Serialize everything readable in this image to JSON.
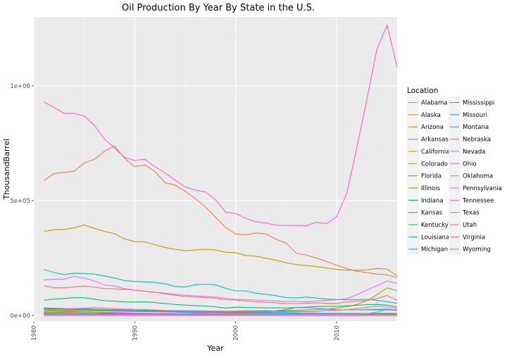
{
  "chart_data": {
    "type": "line",
    "title": "Oil Production By Year By State in the U.S.",
    "xlabel": "Year",
    "ylabel": "ThousandBarrel",
    "xlim": [
      1980,
      2016
    ],
    "ylim": [
      -25000,
      1300000
    ],
    "x_ticks": [
      1980,
      1990,
      2000,
      2010
    ],
    "y_ticks": [
      0,
      500000,
      1000000
    ],
    "y_tick_labels": [
      "0e+00",
      "5e+05",
      "1e+06"
    ],
    "grid": true,
    "legend_title": "Location",
    "legend_position": "right",
    "x": [
      1981,
      1982,
      1983,
      1984,
      1985,
      1986,
      1987,
      1988,
      1989,
      1990,
      1991,
      1992,
      1993,
      1994,
      1995,
      1996,
      1997,
      1998,
      1999,
      2000,
      2001,
      2002,
      2003,
      2004,
      2005,
      2006,
      2007,
      2008,
      2009,
      2010,
      2011,
      2012,
      2013,
      2014,
      2015,
      2016
    ],
    "series": [
      {
        "name": "Alabama",
        "color": "#F8766D",
        "values": [
          20000,
          21000,
          22000,
          21500,
          21000,
          20500,
          19500,
          18500,
          17500,
          17000,
          16500,
          16000,
          15500,
          14500,
          13500,
          12500,
          12000,
          11500,
          11000,
          10500,
          10200,
          10000,
          9800,
          9600,
          9300,
          9000,
          8800,
          8600,
          8400,
          8200,
          8000,
          8200,
          8600,
          8900,
          9200,
          8600
        ]
      },
      {
        "name": "Alaska",
        "color": "#F07E4E",
        "values": [
          587000,
          618000,
          623000,
          628000,
          664000,
          680000,
          715000,
          738000,
          684000,
          648000,
          656000,
          627000,
          578000,
          568000,
          541000,
          509000,
          473000,
          428000,
          383000,
          355000,
          351000,
          359000,
          355000,
          332000,
          315000,
          271000,
          263000,
          250000,
          235000,
          219000,
          204000,
          192000,
          187000,
          180000,
          177000,
          165000
        ]
      },
      {
        "name": "Arizona",
        "color": "#E58600",
        "values": [
          600,
          550,
          500,
          480,
          450,
          430,
          400,
          380,
          350,
          330,
          300,
          280,
          260,
          250,
          240,
          230,
          220,
          210,
          200,
          190,
          180,
          170,
          160,
          150,
          140,
          130,
          120,
          110,
          100,
          90,
          80,
          70,
          60,
          50,
          40,
          30
        ]
      },
      {
        "name": "Arkansas",
        "color": "#D39200",
        "values": [
          18000,
          17500,
          17000,
          16500,
          16000,
          15000,
          14000,
          13000,
          12000,
          11000,
          10000,
          9500,
          9000,
          8600,
          8200,
          7800,
          7400,
          7000,
          6800,
          6500,
          6300,
          6200,
          6100,
          6000,
          5900,
          5800,
          5700,
          5600,
          5500,
          5500,
          5400,
          5500,
          5600,
          6000,
          6300,
          5500
        ]
      },
      {
        "name": "California",
        "color": "#C19A00",
        "values": [
          366000,
          373000,
          374000,
          382000,
          394000,
          379000,
          366000,
          356000,
          333000,
          322000,
          320000,
          308000,
          296000,
          288000,
          282000,
          285000,
          288000,
          285000,
          275000,
          273000,
          261000,
          258000,
          249000,
          241000,
          230000,
          222000,
          217000,
          213000,
          207000,
          200000,
          197000,
          197000,
          199000,
          204000,
          202000,
          172000
        ]
      },
      {
        "name": "Colorado",
        "color": "#A3A500",
        "values": [
          30000,
          29500,
          29000,
          28000,
          27000,
          26000,
          25000,
          24000,
          23000,
          22500,
          22000,
          21500,
          21000,
          20500,
          20000,
          19500,
          19500,
          19000,
          18500,
          18000,
          18500,
          19000,
          19500,
          20000,
          22000,
          23000,
          24000,
          25000,
          28000,
          32000,
          38000,
          48000,
          65000,
          90000,
          120000,
          108000
        ]
      },
      {
        "name": "Florida",
        "color": "#85AD00",
        "values": [
          25000,
          22000,
          20000,
          18000,
          16000,
          14000,
          12000,
          10000,
          8500,
          7000,
          6000,
          5500,
          5000,
          4800,
          4500,
          4300,
          4200,
          4000,
          3800,
          3600,
          3400,
          3200,
          3000,
          2800,
          2600,
          2400,
          2200,
          2100,
          2000,
          1900,
          1900,
          2000,
          2100,
          2200,
          2300,
          2200
        ]
      },
      {
        "name": "Illinois",
        "color": "#5BB300",
        "values": [
          28000,
          27000,
          26000,
          25000,
          24000,
          23000,
          22000,
          21000,
          20000,
          19000,
          18000,
          17000,
          16000,
          15000,
          14500,
          14000,
          13500,
          13000,
          12500,
          12000,
          11500,
          11000,
          10500,
          10000,
          9800,
          9600,
          9500,
          9400,
          9300,
          9200,
          9100,
          9100,
          9100,
          9100,
          9000,
          8800
        ]
      },
      {
        "name": "Indiana",
        "color": "#00BA38",
        "values": [
          10000,
          9800,
          9600,
          9400,
          9200,
          9000,
          8500,
          8000,
          7500,
          7000,
          6500,
          6000,
          5500,
          5200,
          5000,
          4800,
          4600,
          4400,
          4200,
          4000,
          3900,
          3800,
          3700,
          3600,
          3500,
          3400,
          3300,
          3200,
          3100,
          3000,
          3000,
          3100,
          3200,
          3300,
          3400,
          3300
        ]
      },
      {
        "name": "Kansas",
        "color": "#00BF74",
        "values": [
          66000,
          72000,
          74000,
          77000,
          77000,
          71000,
          64000,
          62000,
          59000,
          58000,
          59000,
          56000,
          52000,
          48000,
          45000,
          43000,
          41000,
          38000,
          32000,
          36000,
          35000,
          34000,
          33000,
          33000,
          33000,
          35000,
          36000,
          39000,
          39000,
          40000,
          42000,
          44000,
          47000,
          48000,
          45000,
          38000
        ]
      },
      {
        "name": "Kentucky",
        "color": "#00C097",
        "values": [
          6000,
          5900,
          5800,
          5700,
          5600,
          5500,
          5400,
          5300,
          5200,
          5100,
          5000,
          4900,
          4800,
          4700,
          4600,
          4500,
          4400,
          4300,
          4200,
          4100,
          4000,
          3900,
          3800,
          3700,
          3600,
          3500,
          3400,
          3300,
          3200,
          3100,
          3000,
          2900,
          2800,
          2700,
          2600,
          2500
        ]
      },
      {
        "name": "Louisiana",
        "color": "#00C0B8",
        "values": [
          200000,
          187000,
          178000,
          184000,
          183000,
          180000,
          172000,
          163000,
          152000,
          148000,
          146000,
          144000,
          138000,
          126000,
          124000,
          134000,
          136000,
          134000,
          118000,
          107000,
          107000,
          97000,
          92000,
          86000,
          78000,
          76000,
          80000,
          76000,
          71000,
          70000,
          68000,
          69000,
          70000,
          66000,
          60000,
          53000
        ]
      },
      {
        "name": "Michigan",
        "color": "#00BCD6",
        "values": [
          30000,
          31000,
          30000,
          29000,
          28000,
          27000,
          26000,
          25000,
          24000,
          22000,
          20000,
          19000,
          18000,
          17000,
          16000,
          15000,
          14500,
          14000,
          13500,
          13000,
          12500,
          12000,
          11500,
          11000,
          10500,
          10000,
          9500,
          9000,
          8500,
          8000,
          7500,
          7000,
          6800,
          6500,
          6200,
          6000
        ]
      },
      {
        "name": "Mississippi",
        "color": "#00B5EE",
        "values": [
          33000,
          31000,
          30000,
          29000,
          28000,
          27000,
          26000,
          25000,
          24000,
          23000,
          22500,
          22000,
          21500,
          21000,
          20500,
          20000,
          19500,
          19000,
          18000,
          19000,
          20000,
          20000,
          20500,
          19000,
          18000,
          17500,
          17500,
          18000,
          21000,
          24000,
          24500,
          24000,
          24500,
          24000,
          23500,
          23000
        ]
      },
      {
        "name": "Missouri",
        "color": "#00A9FF",
        "values": [
          200,
          190,
          180,
          170,
          160,
          150,
          140,
          130,
          120,
          110,
          100,
          100,
          100,
          100,
          100,
          100,
          100,
          100,
          100,
          100,
          100,
          100,
          100,
          100,
          100,
          100,
          100,
          100,
          100,
          100,
          100,
          100,
          100,
          100,
          100,
          100
        ]
      },
      {
        "name": "Montana",
        "color": "#35A2FF",
        "values": [
          31000,
          30000,
          29500,
          29000,
          28000,
          27000,
          25000,
          23000,
          21000,
          20000,
          19500,
          19000,
          18500,
          18000,
          17500,
          17000,
          16500,
          16000,
          15500,
          15000,
          15500,
          16000,
          17000,
          20000,
          26000,
          35000,
          34000,
          31000,
          28000,
          25000,
          24000,
          24500,
          25000,
          27000,
          28000,
          24000
        ]
      },
      {
        "name": "Nebraska",
        "color": "#7997FF",
        "values": [
          6000,
          5800,
          5600,
          5400,
          5200,
          5000,
          4800,
          4600,
          4400,
          4200,
          4000,
          3800,
          3600,
          3400,
          3200,
          3100,
          3000,
          2900,
          2800,
          2700,
          2600,
          2500,
          2400,
          2400,
          2300,
          2300,
          2300,
          2300,
          2300,
          2400,
          2500,
          2800,
          3000,
          3200,
          3000,
          2800
        ]
      },
      {
        "name": "Nevada",
        "color": "#A58AFF",
        "values": [
          3000,
          3500,
          4000,
          4500,
          4000,
          3500,
          3000,
          2500,
          2200,
          2000,
          1800,
          1600,
          1400,
          1200,
          1000,
          900,
          800,
          700,
          650,
          600,
          550,
          500,
          480,
          460,
          440,
          420,
          400,
          380,
          360,
          340,
          320,
          300,
          300,
          300,
          300,
          300
        ]
      },
      {
        "name": "Ohio",
        "color": "#C77CFF",
        "values": [
          13000,
          13200,
          13400,
          14000,
          14500,
          13500,
          12500,
          11500,
          10500,
          9800,
          9500,
          9200,
          9000,
          8800,
          8600,
          8300,
          8000,
          7700,
          7400,
          7000,
          6800,
          6500,
          6200,
          6000,
          5800,
          5600,
          5400,
          5300,
          5200,
          5100,
          5000,
          5000,
          8000,
          15000,
          25000,
          21000
        ]
      },
      {
        "name": "Oklahoma",
        "color": "#DE71F9",
        "values": [
          154000,
          158000,
          158000,
          170000,
          162000,
          150000,
          133000,
          128000,
          117000,
          111000,
          106000,
          101000,
          97000,
          92000,
          88000,
          85000,
          83000,
          80000,
          75000,
          70000,
          69000,
          67000,
          65000,
          63000,
          61000,
          62000,
          60000,
          63000,
          66000,
          68000,
          73000,
          90000,
          110000,
          130000,
          150000,
          140000
        ]
      },
      {
        "name": "Pennsylvania",
        "color": "#ED68ED",
        "values": [
          5000,
          4800,
          4600,
          4400,
          4200,
          4000,
          3800,
          3600,
          3400,
          3200,
          3000,
          2900,
          2800,
          2700,
          2600,
          2500,
          2400,
          2300,
          2200,
          2100,
          2000,
          1900,
          1800,
          1700,
          1700,
          1800,
          1900,
          2000,
          2100,
          2200,
          2300,
          2400,
          2500,
          2600,
          2700,
          2500
        ]
      },
      {
        "name": "Tennessee",
        "color": "#F962DD",
        "values": [
          800,
          780,
          760,
          740,
          720,
          700,
          680,
          660,
          640,
          620,
          600,
          580,
          560,
          540,
          520,
          500,
          480,
          460,
          440,
          420,
          400,
          380,
          360,
          340,
          320,
          300,
          290,
          280,
          270,
          260,
          250,
          250,
          250,
          250,
          250,
          250
        ]
      },
      {
        "name": "Texas",
        "color": "#FF61C3",
        "values": [
          930000,
          906000,
          880000,
          880000,
          868000,
          827000,
          768000,
          729000,
          688000,
          675000,
          680000,
          648000,
          621000,
          590000,
          560000,
          546000,
          538000,
          504000,
          450000,
          444000,
          423000,
          408000,
          403000,
          393000,
          392000,
          392000,
          391000,
          406000,
          400000,
          430000,
          530000,
          730000,
          940000,
          1160000,
          1265000,
          1080000
        ]
      },
      {
        "name": "Utah",
        "color": "#FF67A4",
        "values": [
          24000,
          25000,
          26000,
          30000,
          32000,
          34000,
          32000,
          30000,
          28000,
          27000,
          26000,
          24000,
          22000,
          21000,
          20000,
          19000,
          18500,
          18000,
          17000,
          16500,
          16000,
          15500,
          15000,
          14500,
          14500,
          15000,
          16000,
          17000,
          22000,
          23000,
          25000,
          30000,
          35000,
          40000,
          38000,
          31000
        ]
      },
      {
        "name": "Virginia",
        "color": "#FC717F",
        "values": [
          20,
          20,
          20,
          20,
          20,
          20,
          20,
          20,
          20,
          20,
          20,
          20,
          20,
          20,
          20,
          20,
          20,
          20,
          20,
          20,
          20,
          20,
          20,
          20,
          20,
          20,
          20,
          20,
          20,
          20,
          20,
          20,
          20,
          20,
          20,
          20
        ]
      },
      {
        "name": "Wyoming",
        "color": "#F8766D",
        "values": [
          130000,
          121000,
          121000,
          124000,
          128000,
          123000,
          117000,
          116000,
          114000,
          110000,
          105000,
          101000,
          94000,
          88000,
          83000,
          80000,
          78000,
          75000,
          69000,
          67000,
          63000,
          60000,
          57000,
          55000,
          52000,
          52000,
          53000,
          55000,
          53000,
          53000,
          58000,
          62000,
          65000,
          74000,
          87000,
          66000
        ]
      }
    ]
  }
}
